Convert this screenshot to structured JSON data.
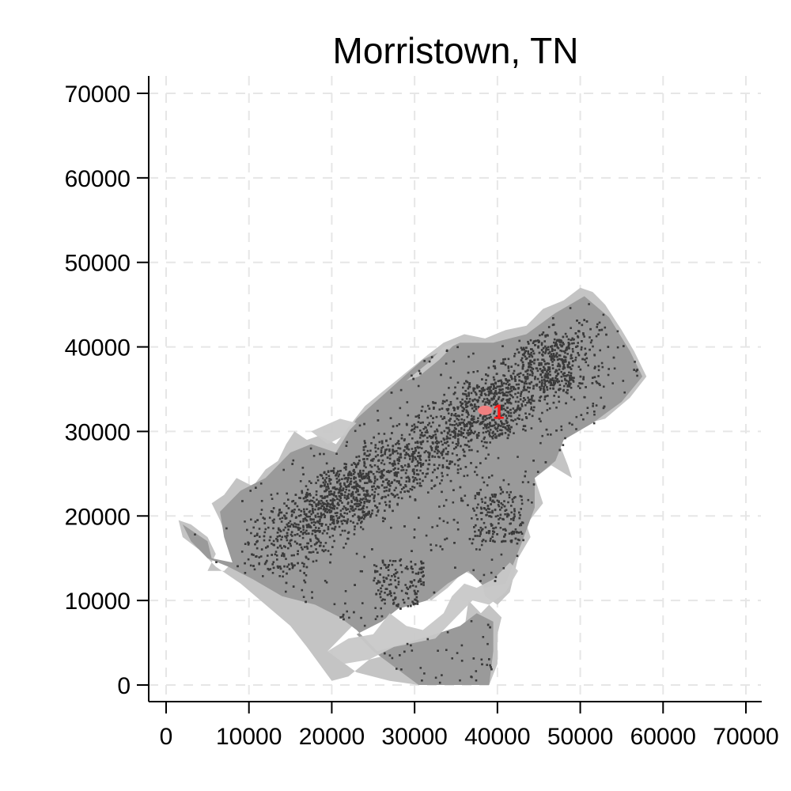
{
  "title": "Morristown, TN",
  "colors": {
    "outer_region": "#c4c4c4",
    "inner_region": "#9a9a9a",
    "water": "#c8c8c8",
    "dense_points": "#3a3a3a",
    "cluster": "#f08080",
    "cluster_label": "#ff1a1a"
  },
  "chart_data": {
    "type": "scatter",
    "title": "Morristown, TN",
    "xlabel": "",
    "ylabel": "",
    "xlim": [
      0,
      70000
    ],
    "ylim": [
      0,
      70000
    ],
    "x_ticks": [
      0,
      10000,
      20000,
      30000,
      40000,
      50000,
      60000,
      70000
    ],
    "y_ticks": [
      0,
      10000,
      20000,
      30000,
      40000,
      50000,
      60000,
      70000
    ],
    "x_tick_labels": [
      "0",
      "10000",
      "20000",
      "30000",
      "40000",
      "50000",
      "60000",
      "70000"
    ],
    "y_tick_labels": [
      "0",
      "10000",
      "20000",
      "30000",
      "40000",
      "50000",
      "60000",
      "70000"
    ],
    "grid": true,
    "outer_boundary": [
      [
        1500,
        19500
      ],
      [
        3000,
        19000
      ],
      [
        5000,
        17500
      ],
      [
        6000,
        15500
      ],
      [
        5000,
        13500
      ],
      [
        7000,
        13500
      ],
      [
        8500,
        15000
      ],
      [
        7500,
        17000
      ],
      [
        6500,
        19500
      ],
      [
        5500,
        21500
      ],
      [
        7000,
        22500
      ],
      [
        8500,
        24500
      ],
      [
        10500,
        23500
      ],
      [
        12000,
        25500
      ],
      [
        13500,
        26500
      ],
      [
        14500,
        28500
      ],
      [
        15500,
        30000
      ],
      [
        17000,
        29000
      ],
      [
        18500,
        29500
      ],
      [
        20500,
        28500
      ],
      [
        22000,
        30500
      ],
      [
        24000,
        33000
      ],
      [
        26500,
        35000
      ],
      [
        29000,
        37000
      ],
      [
        31500,
        39000
      ],
      [
        33500,
        40500
      ],
      [
        36000,
        41500
      ],
      [
        38500,
        41000
      ],
      [
        41000,
        42000
      ],
      [
        43500,
        42500
      ],
      [
        45500,
        44500
      ],
      [
        48000,
        45500
      ],
      [
        50000,
        47000
      ],
      [
        51500,
        46500
      ],
      [
        53000,
        45000
      ],
      [
        55000,
        42000
      ],
      [
        56500,
        39500
      ],
      [
        58000,
        36500
      ],
      [
        56000,
        34000
      ],
      [
        53000,
        31500
      ],
      [
        51000,
        31000
      ],
      [
        49000,
        30000
      ],
      [
        47500,
        28500
      ],
      [
        48500,
        26000
      ],
      [
        49000,
        24500
      ],
      [
        46500,
        26000
      ],
      [
        44500,
        24500
      ],
      [
        45500,
        21500
      ],
      [
        43500,
        19000
      ],
      [
        44000,
        17500
      ],
      [
        42500,
        15000
      ],
      [
        41500,
        11000
      ],
      [
        40000,
        9500
      ],
      [
        38500,
        10500
      ],
      [
        38000,
        12500
      ],
      [
        36000,
        13500
      ],
      [
        34000,
        11500
      ],
      [
        32000,
        10000
      ],
      [
        30000,
        11500
      ],
      [
        28000,
        10500
      ],
      [
        26500,
        9000
      ],
      [
        24500,
        9000
      ],
      [
        23000,
        7500
      ],
      [
        21000,
        5500
      ],
      [
        19500,
        4000
      ],
      [
        23000,
        1500
      ],
      [
        27000,
        500
      ],
      [
        30500,
        0
      ],
      [
        39000,
        0
      ],
      [
        40000,
        2500
      ],
      [
        40000,
        6000
      ],
      [
        40500,
        8000
      ],
      [
        39000,
        9500
      ],
      [
        38000,
        8500
      ],
      [
        36500,
        10000
      ],
      [
        36000,
        6500
      ],
      [
        34000,
        5000
      ],
      [
        31500,
        5000
      ],
      [
        29000,
        4500
      ],
      [
        26500,
        3500
      ],
      [
        24500,
        3000
      ],
      [
        22000,
        1000
      ],
      [
        20000,
        500
      ],
      [
        17000,
        4500
      ],
      [
        15000,
        7000
      ],
      [
        12000,
        9500
      ],
      [
        9000,
        12000
      ],
      [
        6000,
        14000
      ],
      [
        4000,
        16000
      ],
      [
        2000,
        17500
      ],
      [
        1500,
        19500
      ]
    ],
    "inner_region": [
      [
        2000,
        19000
      ],
      [
        5000,
        17000
      ],
      [
        5500,
        15000
      ],
      [
        8000,
        14500
      ],
      [
        7000,
        17500
      ],
      [
        6500,
        20500
      ],
      [
        9000,
        23000
      ],
      [
        12000,
        24500
      ],
      [
        15000,
        27500
      ],
      [
        17500,
        28500
      ],
      [
        20500,
        27500
      ],
      [
        23000,
        31500
      ],
      [
        27000,
        35000
      ],
      [
        31000,
        38500
      ],
      [
        35500,
        40500
      ],
      [
        39500,
        40500
      ],
      [
        43500,
        41500
      ],
      [
        47000,
        44000
      ],
      [
        50500,
        46000
      ],
      [
        53500,
        43500
      ],
      [
        56000,
        39500
      ],
      [
        57500,
        36500
      ],
      [
        55000,
        33500
      ],
      [
        51500,
        31000
      ],
      [
        48000,
        29000
      ],
      [
        47000,
        26500
      ],
      [
        44500,
        24500
      ],
      [
        44500,
        21000
      ],
      [
        43000,
        17000
      ],
      [
        41000,
        12000
      ],
      [
        38500,
        11500
      ],
      [
        36500,
        13500
      ],
      [
        34000,
        12000
      ],
      [
        31500,
        10000
      ],
      [
        28000,
        9000
      ],
      [
        26000,
        7500
      ],
      [
        23000,
        6000
      ],
      [
        25000,
        4000
      ],
      [
        30500,
        0
      ],
      [
        39000,
        0
      ],
      [
        39500,
        4000
      ],
      [
        39500,
        7500
      ],
      [
        37500,
        8500
      ],
      [
        35500,
        7000
      ],
      [
        32500,
        6000
      ],
      [
        29000,
        5000
      ],
      [
        25500,
        4000
      ],
      [
        23000,
        6500
      ],
      [
        21000,
        8000
      ],
      [
        18000,
        9500
      ],
      [
        14000,
        10500
      ],
      [
        10500,
        12500
      ],
      [
        7500,
        14000
      ],
      [
        5000,
        15000
      ],
      [
        3000,
        17000
      ],
      [
        2000,
        19000
      ]
    ],
    "cluster_points": [
      {
        "label": "1",
        "x": 38500,
        "y": 32500
      }
    ]
  }
}
